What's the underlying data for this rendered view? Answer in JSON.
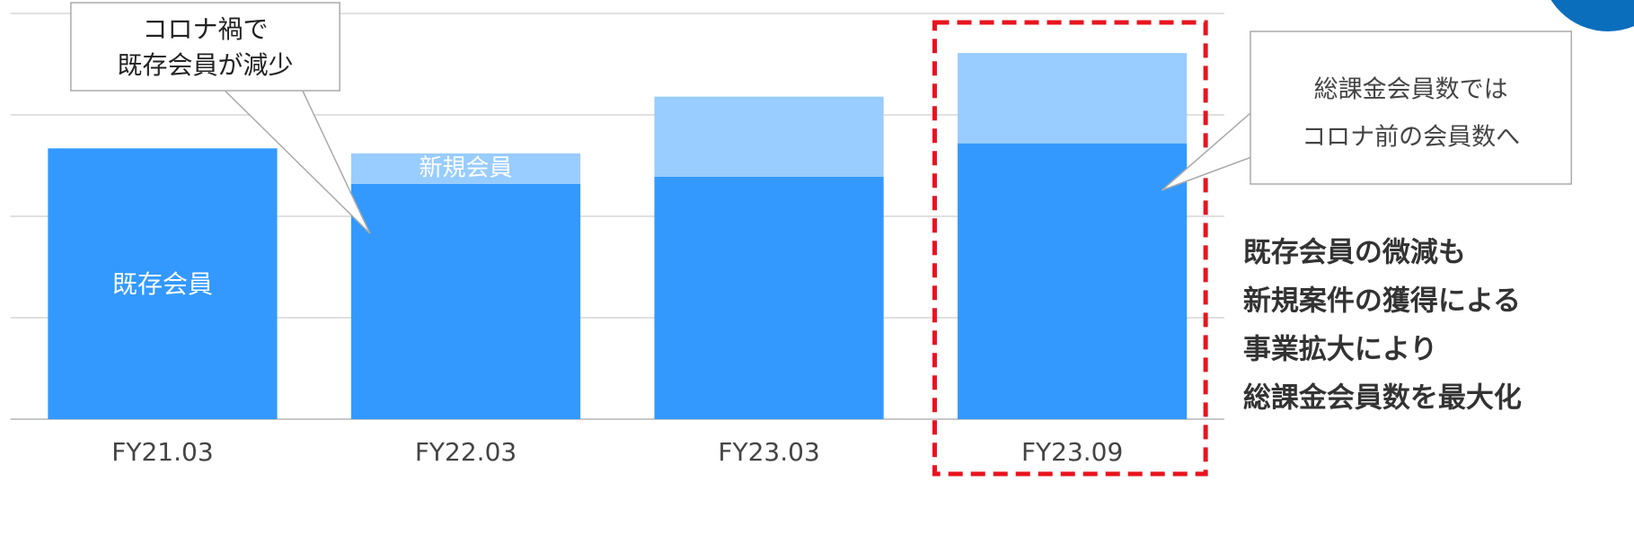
{
  "chart_data": {
    "type": "stacked_bar",
    "categories": [
      "FY21.03",
      "FY22.03",
      "FY23.03",
      "FY23.09"
    ],
    "series": [
      {
        "name": "既存会員",
        "color": "#3399ff",
        "values": [
          2.67,
          2.32,
          2.39,
          2.72
        ]
      },
      {
        "name": "新規会員",
        "color": "#99ccff",
        "values": [
          0,
          0.3,
          0.79,
          0.89
        ]
      }
    ],
    "ylim": [
      0,
      4
    ],
    "yticks": [
      0,
      1,
      2,
      3,
      4
    ],
    "grid": true,
    "annotations": [
      {
        "lines": [
          "コロナ禍で",
          "既存会員が減少"
        ]
      },
      {
        "lines": [
          "総課金会員数では",
          "コロナ前の会員数へ"
        ]
      }
    ],
    "note": [
      "既存会員の微減も",
      "新規案件の獲得による",
      "事業拡大により",
      "総課金会員数を最大化"
    ]
  }
}
